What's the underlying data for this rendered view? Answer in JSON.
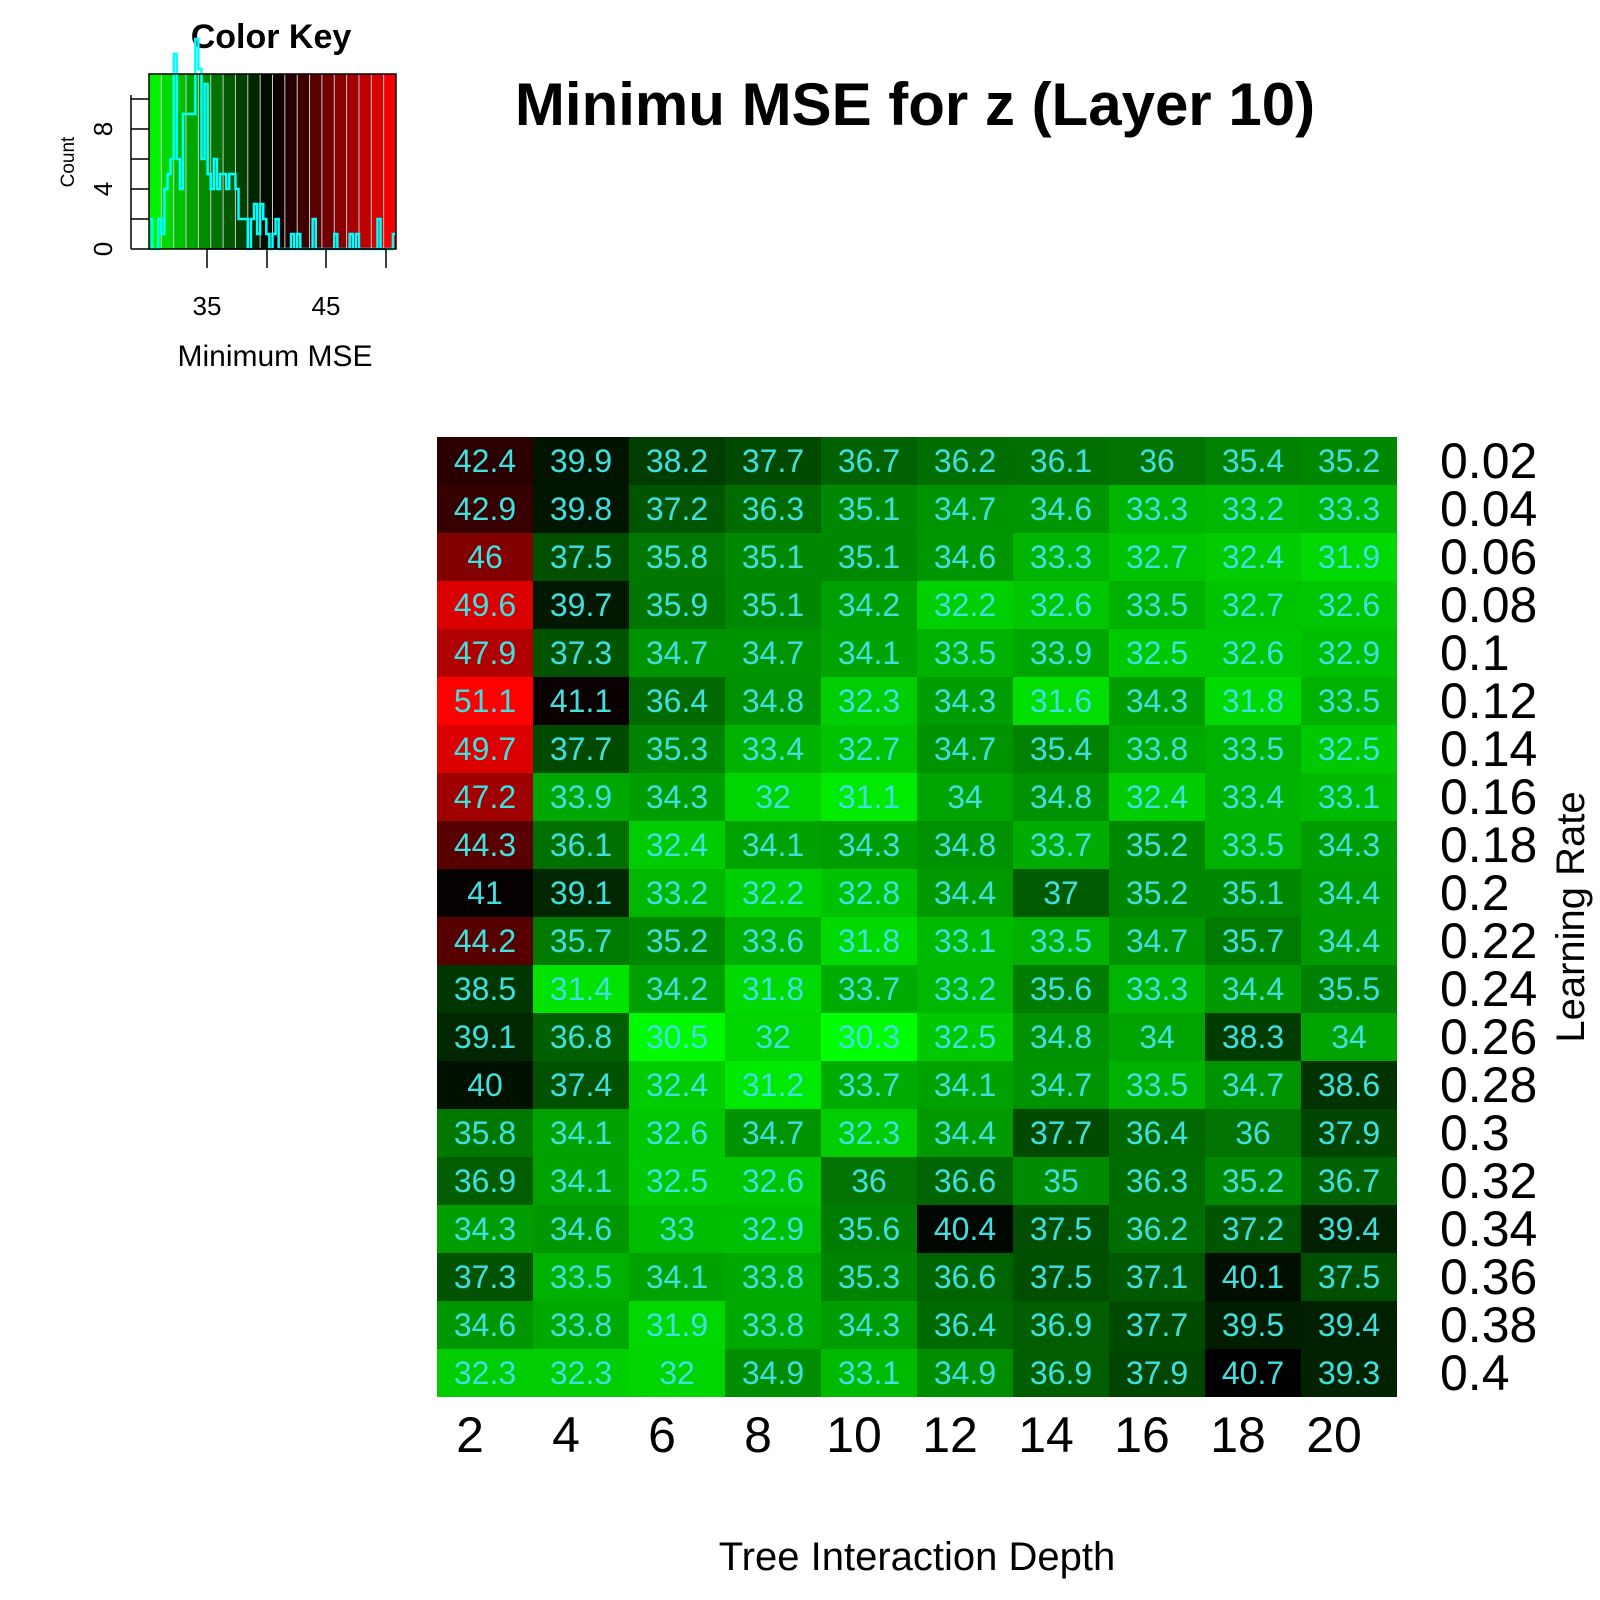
{
  "chart_data": {
    "type": "heatmap",
    "title": "Minimu MSE for z (Layer 10)",
    "xlabel": "Tree Interaction Depth",
    "ylabel": "Learning Rate",
    "x_tick_labels": [
      "2",
      "4",
      "6",
      "8",
      "10",
      "12",
      "14",
      "16",
      "18",
      "20"
    ],
    "y_tick_labels": [
      "0.02",
      "0.04",
      "0.06",
      "0.08",
      "0.1",
      "0.12",
      "0.14",
      "0.16",
      "0.18",
      "0.2",
      "0.22",
      "0.24",
      "0.26",
      "0.28",
      "0.3",
      "0.32",
      "0.34",
      "0.36",
      "0.38",
      "0.4"
    ],
    "values": [
      [
        "42.4",
        "39.9",
        "38.2",
        "37.7",
        "36.7",
        "36.2",
        "36.1",
        "36",
        "35.4",
        "35.2"
      ],
      [
        "42.9",
        "39.8",
        "37.2",
        "36.3",
        "35.1",
        "34.7",
        "34.6",
        "33.3",
        "33.2",
        "33.3"
      ],
      [
        "46",
        "37.5",
        "35.8",
        "35.1",
        "35.1",
        "34.6",
        "33.3",
        "32.7",
        "32.4",
        "31.9"
      ],
      [
        "49.6",
        "39.7",
        "35.9",
        "35.1",
        "34.2",
        "32.2",
        "32.6",
        "33.5",
        "32.7",
        "32.6"
      ],
      [
        "47.9",
        "37.3",
        "34.7",
        "34.7",
        "34.1",
        "33.5",
        "33.9",
        "32.5",
        "32.6",
        "32.9"
      ],
      [
        "51.1",
        "41.1",
        "36.4",
        "34.8",
        "32.3",
        "34.3",
        "31.6",
        "34.3",
        "31.8",
        "33.5"
      ],
      [
        "49.7",
        "37.7",
        "35.3",
        "33.4",
        "32.7",
        "34.7",
        "35.4",
        "33.8",
        "33.5",
        "32.5"
      ],
      [
        "47.2",
        "33.9",
        "34.3",
        "32",
        "31.1",
        "34",
        "34.8",
        "32.4",
        "33.4",
        "33.1"
      ],
      [
        "44.3",
        "36.1",
        "32.4",
        "34.1",
        "34.3",
        "34.8",
        "33.7",
        "35.2",
        "33.5",
        "34.3"
      ],
      [
        "41",
        "39.1",
        "33.2",
        "32.2",
        "32.8",
        "34.4",
        "37",
        "35.2",
        "35.1",
        "34.4"
      ],
      [
        "44.2",
        "35.7",
        "35.2",
        "33.6",
        "31.8",
        "33.1",
        "33.5",
        "34.7",
        "35.7",
        "34.4"
      ],
      [
        "38.5",
        "31.4",
        "34.2",
        "31.8",
        "33.7",
        "33.2",
        "35.6",
        "33.3",
        "34.4",
        "35.5"
      ],
      [
        "39.1",
        "36.8",
        "30.5",
        "32",
        "30.3",
        "32.5",
        "34.8",
        "34",
        "38.3",
        "34"
      ],
      [
        "40",
        "37.4",
        "32.4",
        "31.2",
        "33.7",
        "34.1",
        "34.7",
        "33.5",
        "34.7",
        "38.6"
      ],
      [
        "35.8",
        "34.1",
        "32.6",
        "34.7",
        "32.3",
        "34.4",
        "37.7",
        "36.4",
        "36",
        "37.9"
      ],
      [
        "36.9",
        "34.1",
        "32.5",
        "32.6",
        "36",
        "36.6",
        "35",
        "36.3",
        "35.2",
        "36.7"
      ],
      [
        "34.3",
        "34.6",
        "33",
        "32.9",
        "35.6",
        "40.4",
        "37.5",
        "36.2",
        "37.2",
        "39.4"
      ],
      [
        "37.3",
        "33.5",
        "34.1",
        "33.8",
        "35.3",
        "36.6",
        "37.5",
        "37.1",
        "40.1",
        "37.5"
      ],
      [
        "34.6",
        "33.8",
        "31.9",
        "33.8",
        "34.3",
        "36.4",
        "36.9",
        "37.7",
        "39.5",
        "39.4"
      ],
      [
        "32.3",
        "32.3",
        "32",
        "34.9",
        "33.1",
        "34.9",
        "36.9",
        "37.9",
        "40.7",
        "39.3"
      ]
    ],
    "color_scale": {
      "low": "#00ff00",
      "mid": "#000000",
      "high": "#ff0000",
      "min": 30.3,
      "max": 51.1,
      "mid_value": 40.7
    },
    "cell_text_color": "#40e0e0",
    "color_key": {
      "title": "Color Key",
      "xlabel": "Minimum MSE",
      "ylabel": "Count",
      "x_ticks": [
        "35",
        "45"
      ],
      "y_ticks": [
        "0",
        "4",
        "8"
      ],
      "histogram_color": "#00ffff"
    }
  }
}
